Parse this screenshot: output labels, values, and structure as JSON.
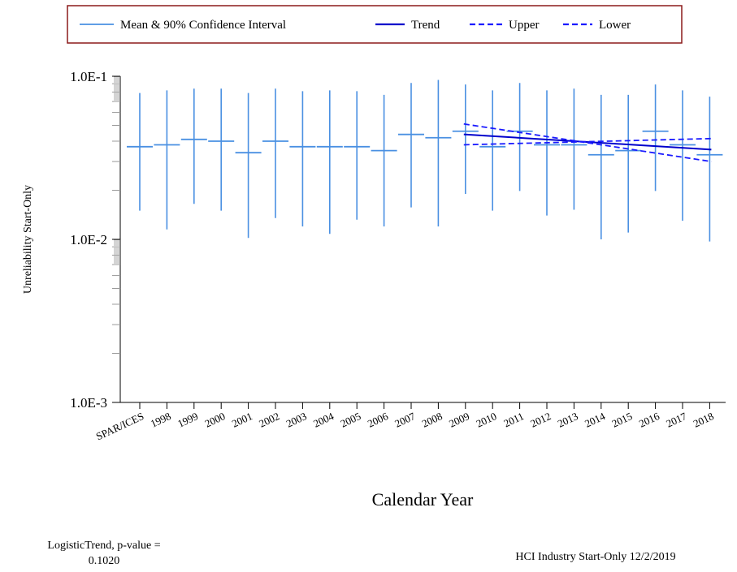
{
  "chart_data": {
    "type": "line",
    "ylabel": "Unreliability Start-Only",
    "xlabel": "Calendar Year",
    "y_scale": "log",
    "ylim": [
      0.001,
      0.1
    ],
    "y_tick_labels": [
      "1.0E-3",
      "1.0E-2",
      "1.0E-1"
    ],
    "categories": [
      "SPAR/ICES",
      "1998",
      "1999",
      "2000",
      "2001",
      "2002",
      "2003",
      "2004",
      "2005",
      "2006",
      "2007",
      "2008",
      "2009",
      "2010",
      "2011",
      "2012",
      "2013",
      "2014",
      "2015",
      "2016",
      "2017",
      "2018"
    ],
    "legend": {
      "placement": "top",
      "entries": [
        {
          "label": "Mean & 90% Confidence Interval",
          "style": "solid",
          "color": "#4a90e2"
        },
        {
          "label": "Trend",
          "style": "solid",
          "color": "#0000cc"
        },
        {
          "label": "Upper",
          "style": "dashed",
          "color": "#1a1aff"
        },
        {
          "label": "Lower",
          "style": "dashed",
          "color": "#1a1aff"
        }
      ]
    },
    "series": [
      {
        "name": "Mean & 90% Confidence Interval",
        "color": "#4a90e2",
        "mean": [
          0.037,
          0.038,
          0.041,
          0.04,
          0.034,
          0.04,
          0.037,
          0.037,
          0.037,
          0.035,
          0.044,
          0.042,
          0.046,
          0.037,
          0.046,
          0.038,
          0.038,
          0.033,
          0.035,
          0.046,
          0.038,
          0.033
        ],
        "upper": [
          0.079,
          0.082,
          0.084,
          0.084,
          0.079,
          0.084,
          0.081,
          0.082,
          0.081,
          0.077,
          0.091,
          0.095,
          0.089,
          0.082,
          0.091,
          0.082,
          0.084,
          0.077,
          0.077,
          0.089,
          0.082,
          0.075
        ],
        "lower": [
          0.015,
          0.0115,
          0.0165,
          0.015,
          0.0102,
          0.0135,
          0.012,
          0.0108,
          0.0132,
          0.012,
          0.0157,
          0.012,
          0.019,
          0.015,
          0.0198,
          0.014,
          0.0152,
          0.01,
          0.011,
          0.0198,
          0.013,
          0.0097
        ]
      },
      {
        "name": "Trend",
        "color": "#0000cc",
        "x": [
          "2009",
          "2018"
        ],
        "values": [
          0.044,
          0.0355
        ]
      },
      {
        "name": "Upper",
        "color": "#1a1aff",
        "x": [
          "2009",
          "2018"
        ],
        "values": [
          0.051,
          0.03
        ]
      },
      {
        "name": "Lower",
        "color": "#1a1aff",
        "x": [
          "2009",
          "2018"
        ],
        "values": [
          0.038,
          0.0415
        ]
      }
    ]
  },
  "footer": {
    "test_label": "LogisticTrend, p-value =",
    "p_value": "0.1020",
    "caption": "HCI Industry Start-Only 12/2/2019"
  }
}
